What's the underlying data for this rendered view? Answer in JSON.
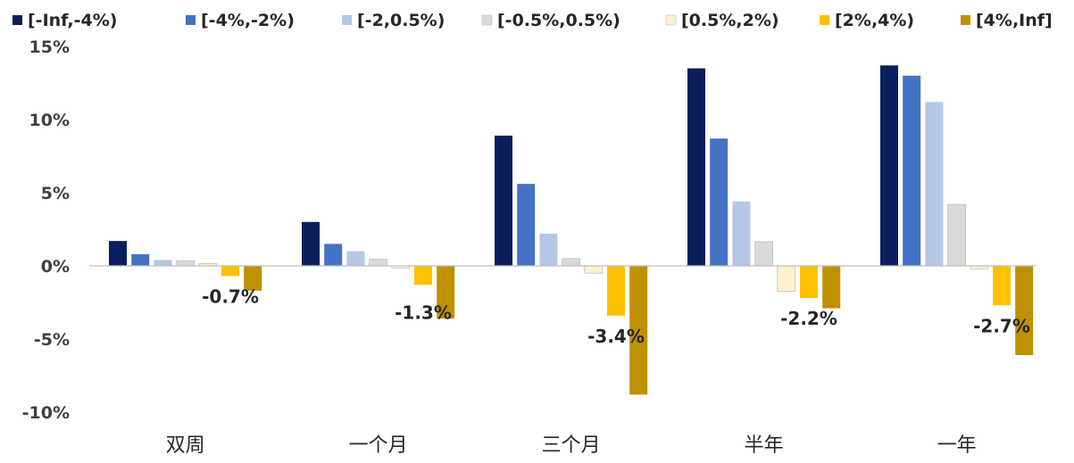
{
  "colors": [
    "#0b1f5c",
    "#4472c4",
    "#b4c7e7",
    "#d9d9d9",
    "#fff2cc",
    "#ffc000",
    "#bf9000"
  ],
  "chart_data": {
    "type": "bar",
    "title": "",
    "xlabel": "",
    "ylabel": "",
    "ylim": [
      -10,
      15
    ],
    "yticks": [
      15,
      10,
      5,
      0,
      -5,
      -10
    ],
    "ytick_labels": [
      "15%",
      "10%",
      "5%",
      "0%",
      "-5%",
      "-10%"
    ],
    "categories": [
      "双周",
      "一个月",
      "三个月",
      "半年",
      "一年"
    ],
    "series": [
      {
        "name": "[-Inf,-4%)",
        "values": [
          1.7,
          3.0,
          8.9,
          13.5,
          13.7
        ]
      },
      {
        "name": "[-4%,-2%)",
        "values": [
          0.8,
          1.5,
          5.6,
          8.7,
          13.0
        ]
      },
      {
        "name": "[-2,0.5%)",
        "values": [
          0.4,
          1.0,
          2.2,
          4.4,
          11.2
        ]
      },
      {
        "name": "[-0.5%,0.5%)",
        "values": [
          0.35,
          0.45,
          0.5,
          1.65,
          4.2
        ]
      },
      {
        "name": "[0.5%,2%)",
        "values": [
          0.15,
          -0.15,
          -0.5,
          -1.75,
          -0.2
        ]
      },
      {
        "name": "[2%,4%)",
        "values": [
          -0.7,
          -1.3,
          -3.4,
          -2.2,
          -2.7
        ]
      },
      {
        "name": "[4%,Inf]",
        "values": [
          -1.7,
          -3.6,
          -8.8,
          -2.9,
          -6.1
        ]
      }
    ],
    "data_labels": [
      {
        "category": "双周",
        "series": "[2%,4%)",
        "text": "-0.7%"
      },
      {
        "category": "一个月",
        "series": "[2%,4%)",
        "text": "-1.3%"
      },
      {
        "category": "三个月",
        "series": "[2%,4%)",
        "text": "-3.4%"
      },
      {
        "category": "半年",
        "series": "[2%,4%)",
        "text": "-2.2%"
      },
      {
        "category": "一年",
        "series": "[2%,4%)",
        "text": "-2.7%"
      }
    ],
    "legend_position": "top"
  }
}
